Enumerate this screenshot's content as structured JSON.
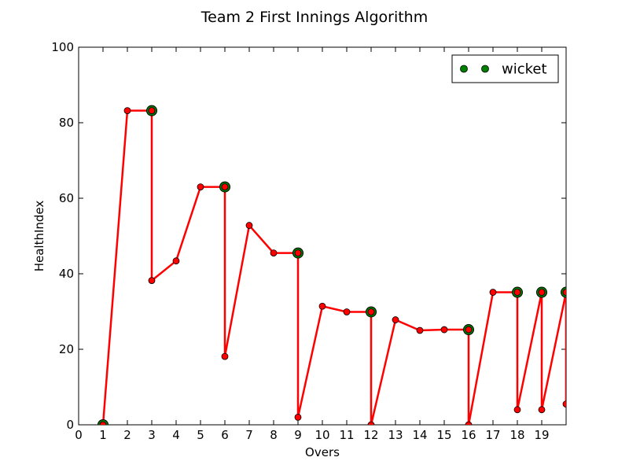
{
  "chart_data": {
    "type": "line",
    "title": "Team 2 First Innings Algorithm",
    "xlabel": "Overs",
    "ylabel": "HealthIndex",
    "xlim": [
      0,
      20
    ],
    "ylim": [
      0,
      100
    ],
    "xticks": [
      0,
      1,
      2,
      3,
      4,
      5,
      6,
      7,
      8,
      9,
      10,
      11,
      12,
      13,
      14,
      15,
      16,
      17,
      18,
      19
    ],
    "yticks": [
      0,
      20,
      40,
      60,
      80,
      100
    ],
    "grid": false,
    "legend": {
      "placement": "top-right",
      "entries": [
        "wicket"
      ]
    },
    "colors": {
      "line": "#ff0000",
      "point": "#ff0000",
      "wicket": "#008000"
    },
    "series": [
      {
        "values": [
          [
            1,
            0
          ],
          [
            2,
            83.2
          ],
          [
            3,
            83.2
          ],
          [
            3,
            38.2
          ],
          [
            4,
            43.4
          ],
          [
            5,
            63
          ],
          [
            6,
            63
          ],
          [
            6,
            18.1
          ],
          [
            7,
            52.8
          ],
          [
            8,
            45.5
          ],
          [
            9,
            45.5
          ],
          [
            9,
            2
          ],
          [
            10,
            31.4
          ],
          [
            11,
            29.9
          ],
          [
            12,
            29.9
          ],
          [
            12,
            0
          ],
          [
            13,
            27.8
          ],
          [
            14,
            25
          ],
          [
            15,
            25.2
          ],
          [
            16,
            25.2
          ],
          [
            16,
            0
          ],
          [
            17,
            35.1
          ],
          [
            18,
            35.1
          ],
          [
            18,
            4
          ],
          [
            19,
            35.1
          ],
          [
            19,
            4
          ],
          [
            20,
            35.1
          ],
          [
            20,
            5.5
          ]
        ]
      },
      {
        "name": "wicket",
        "values": [
          [
            1,
            0
          ],
          [
            3,
            83.2
          ],
          [
            6,
            63
          ],
          [
            9,
            45.5
          ],
          [
            12,
            29.9
          ],
          [
            16,
            25.2
          ],
          [
            18,
            35.1
          ],
          [
            19,
            35.1
          ],
          [
            20,
            35.1
          ]
        ]
      }
    ]
  }
}
